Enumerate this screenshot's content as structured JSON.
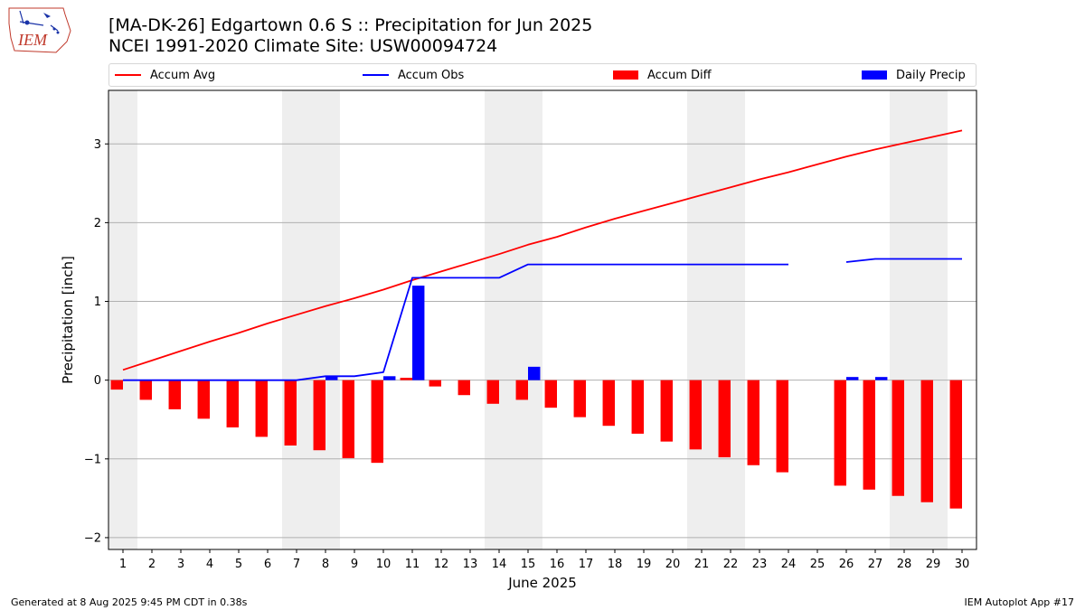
{
  "logo": {
    "text": "IEM"
  },
  "header": {
    "title": "[MA-DK-26] Edgartown 0.6 S :: Precipitation for Jun 2025",
    "subtitle": "NCEI 1991-2020 Climate Site: USW00094724"
  },
  "legend": {
    "accum_avg": "Accum Avg",
    "accum_obs": "Accum Obs",
    "accum_diff": "Accum Diff",
    "daily_precip": "Daily Precip"
  },
  "footer": {
    "generated": "Generated at 8 Aug 2025 9:45 PM CDT in 0.38s",
    "app": "IEM Autoplot App #17"
  },
  "colors": {
    "avg": "#ff0000",
    "obs": "#0000ff",
    "diff": "#ff0000",
    "precip": "#0000ff",
    "weekend": "#eeeeee",
    "grid": "#b0b0b0"
  },
  "chart_data": {
    "type": "bar",
    "xlabel": "June 2025",
    "ylabel": "Precipitation [inch]",
    "ylim": [
      -2.15,
      3.68
    ],
    "yticks": [
      -2,
      -1,
      0,
      1,
      2,
      3
    ],
    "ytick_labels": [
      "−2",
      "−1",
      "0",
      "1",
      "2",
      "3"
    ],
    "x": [
      1,
      2,
      3,
      4,
      5,
      6,
      7,
      8,
      9,
      10,
      11,
      12,
      13,
      14,
      15,
      16,
      17,
      18,
      19,
      20,
      21,
      22,
      23,
      24,
      25,
      26,
      27,
      28,
      29,
      30
    ],
    "weekend_days": [
      1,
      7,
      8,
      14,
      15,
      21,
      22,
      28,
      29
    ],
    "grid": true,
    "series": [
      {
        "name": "Accum Avg",
        "kind": "line",
        "values": [
          0.13,
          0.25,
          0.37,
          0.49,
          0.6,
          0.72,
          0.83,
          0.94,
          1.04,
          1.15,
          1.27,
          1.38,
          1.49,
          1.6,
          1.72,
          1.82,
          1.94,
          2.05,
          2.15,
          2.25,
          2.35,
          2.45,
          2.55,
          2.64,
          2.74,
          2.84,
          2.93,
          3.01,
          3.09,
          3.17
        ]
      },
      {
        "name": "Accum Obs",
        "kind": "line",
        "values": [
          0.0,
          0.0,
          0.0,
          0.0,
          0.0,
          0.0,
          0.0,
          0.05,
          0.05,
          0.1,
          1.3,
          1.3,
          1.3,
          1.3,
          1.47,
          1.47,
          1.47,
          1.47,
          1.47,
          1.47,
          1.47,
          1.47,
          1.47,
          1.47,
          null,
          1.5,
          1.54,
          1.54,
          1.54,
          1.54
        ]
      },
      {
        "name": "Accum Diff",
        "kind": "bar",
        "values": [
          -0.12,
          -0.25,
          -0.37,
          -0.49,
          -0.6,
          -0.72,
          -0.83,
          -0.89,
          -0.99,
          -1.05,
          0.03,
          -0.08,
          -0.19,
          -0.3,
          -0.25,
          -0.35,
          -0.47,
          -0.58,
          -0.68,
          -0.78,
          -0.88,
          -0.98,
          -1.08,
          -1.17,
          null,
          -1.34,
          -1.39,
          -1.47,
          -1.55,
          -1.63
        ]
      },
      {
        "name": "Daily Precip",
        "kind": "bar",
        "values": [
          0,
          0,
          0,
          0,
          0,
          0,
          0,
          0.05,
          0,
          0.05,
          1.2,
          0,
          0,
          0,
          0.17,
          0,
          0,
          0,
          0,
          0,
          0,
          0,
          0,
          0,
          null,
          0.04,
          0.04,
          0,
          0,
          0
        ]
      }
    ]
  }
}
